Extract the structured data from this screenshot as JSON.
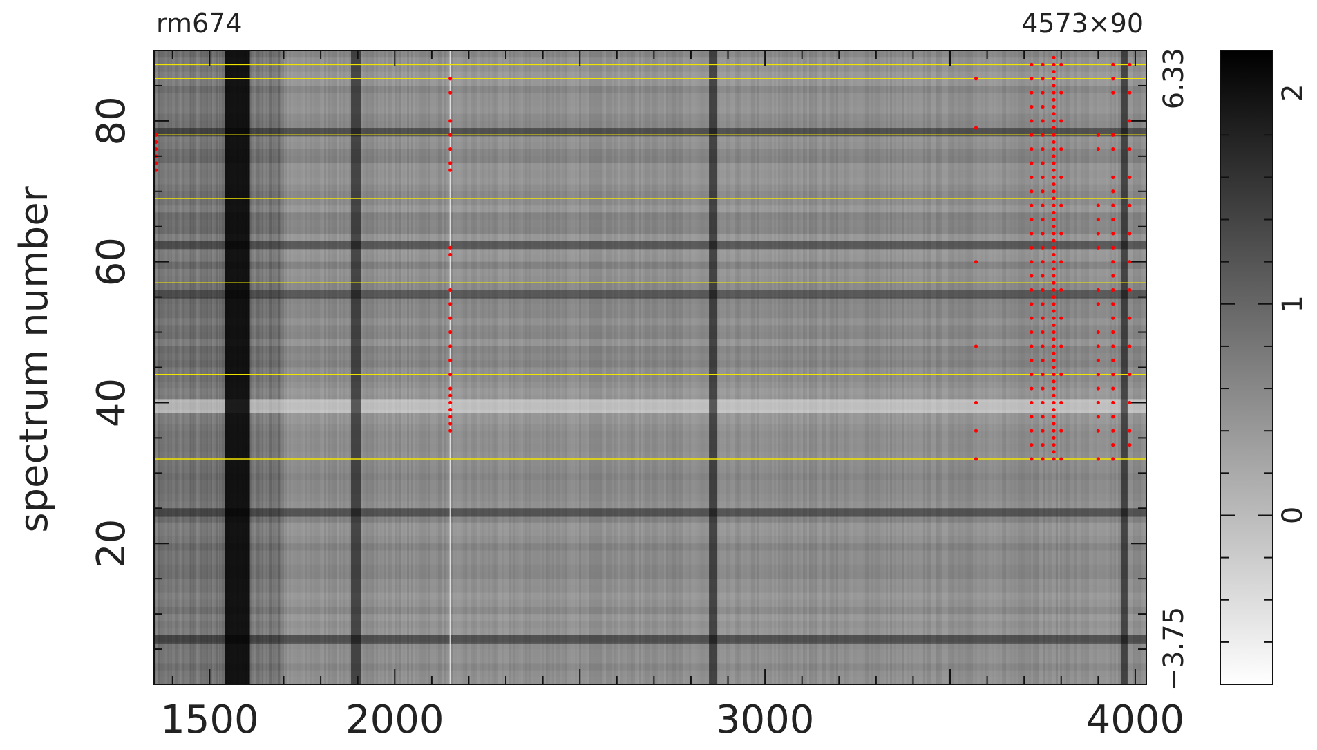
{
  "chart_data": {
    "type": "heatmap",
    "title_left": "rm674",
    "title_right": "4573×90",
    "ylabel": "spectrum number",
    "xlim": [
      1350,
      4030
    ],
    "ylim": [
      0,
      90
    ],
    "x_tick_labels": [
      "1500",
      "2000",
      "3000",
      "4000"
    ],
    "x_tick_values": [
      1500,
      2000,
      3000,
      4000
    ],
    "y_tick_labels": [
      "20",
      "40",
      "60",
      "80"
    ],
    "y_tick_values": [
      20,
      40,
      60,
      80
    ],
    "right_axis_labels": [
      "6.33",
      "−3.75"
    ],
    "right_axis_values": [
      86,
      5
    ],
    "colorbar": {
      "range": [
        -0.8,
        2.2
      ],
      "tick_labels": [
        "2",
        "1",
        "0"
      ],
      "tick_values": [
        2,
        1,
        0
      ],
      "colormap": "grayscale (white = low, black = high)"
    },
    "yellow_line_rows": [
      32,
      44,
      57,
      69,
      78,
      86,
      88
    ],
    "dark_vertical_bands_x": [
      1575,
      1895,
      2860,
      3970
    ],
    "dark_horizontal_bands_rows": [
      6,
      24,
      55,
      62,
      78
    ],
    "bright_horizontal_band_rows": [
      39
    ],
    "masked_points": {
      "color": "#ff0000",
      "clusters": [
        {
          "x": 1355,
          "rows": [
            73,
            74,
            75,
            76,
            77,
            78
          ]
        },
        {
          "x": 2150,
          "rows": [
            36,
            37,
            38,
            39,
            40,
            41,
            42,
            44,
            46,
            48,
            50,
            52,
            54,
            56,
            61,
            62,
            73,
            74,
            76,
            78,
            80,
            84,
            86
          ]
        },
        {
          "x": 3570,
          "rows": [
            32,
            36,
            40,
            48,
            60,
            79,
            86
          ]
        },
        {
          "x": 3720,
          "rows": [
            32,
            34,
            36,
            38,
            40,
            42,
            44,
            46,
            48,
            50,
            52,
            54,
            56,
            58,
            60,
            62,
            64,
            66,
            68,
            70,
            72,
            74,
            76,
            78,
            80,
            82,
            84,
            86,
            88
          ]
        },
        {
          "x": 3750,
          "rows": [
            32,
            34,
            36,
            38,
            40,
            42,
            44,
            46,
            48,
            50,
            52,
            54,
            56,
            58,
            60,
            62,
            64,
            66,
            68,
            70,
            72,
            74,
            76,
            78,
            80,
            82,
            84,
            86,
            88
          ]
        },
        {
          "x": 3780,
          "rows": [
            32,
            33,
            34,
            35,
            36,
            37,
            38,
            39,
            40,
            41,
            42,
            43,
            44,
            45,
            46,
            47,
            48,
            49,
            50,
            51,
            52,
            53,
            54,
            55,
            56,
            57,
            58,
            59,
            60,
            61,
            62,
            63,
            64,
            65,
            66,
            67,
            68,
            69,
            70,
            71,
            72,
            73,
            74,
            75,
            76,
            77,
            78,
            79,
            80,
            81,
            82,
            83,
            84,
            85,
            86,
            87,
            88,
            89
          ]
        },
        {
          "x": 3800,
          "rows": [
            32,
            36,
            40,
            44,
            48,
            52,
            56,
            60,
            64,
            68,
            72,
            76,
            80,
            84,
            88
          ]
        },
        {
          "x": 3900,
          "rows": [
            32,
            36,
            38,
            40,
            42,
            44,
            46,
            48,
            50,
            54,
            56,
            62,
            64,
            66,
            68,
            76,
            78
          ]
        },
        {
          "x": 3940,
          "rows": [
            32,
            34,
            36,
            38,
            40,
            42,
            44,
            46,
            48,
            50,
            52,
            54,
            56,
            58,
            60,
            62,
            64,
            66,
            68,
            70,
            72,
            76,
            78,
            84,
            86,
            88
          ]
        },
        {
          "x": 3985,
          "rows": [
            34,
            36,
            40,
            44,
            48,
            52,
            56,
            60,
            64,
            68,
            72,
            76,
            80,
            84,
            88
          ]
        }
      ]
    }
  }
}
